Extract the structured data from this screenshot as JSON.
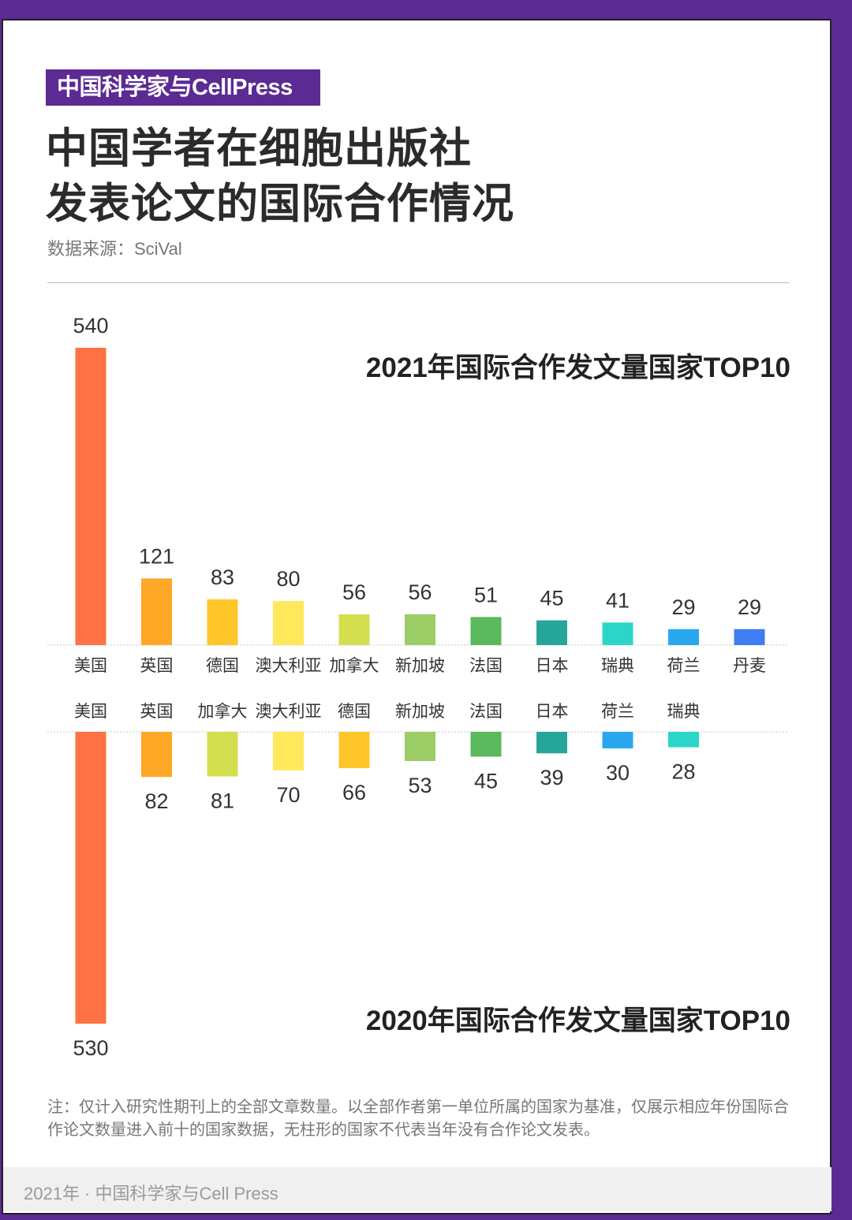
{
  "header": {
    "badge": "中国科学家与CellPress",
    "title_line1": "中国学者在细胞出版社",
    "title_line2": "发表论文的国际合作情况",
    "source": "数据来源：SciVal"
  },
  "chart_data": [
    {
      "type": "bar",
      "title": "2021年国际合作发文量国家TOP10",
      "categories": [
        "美国",
        "英国",
        "德国",
        "澳大利亚",
        "加拿大",
        "新加坡",
        "法国",
        "日本",
        "瑞典",
        "荷兰",
        "丹麦"
      ],
      "values": [
        540,
        121,
        83,
        80,
        56,
        56,
        51,
        45,
        41,
        29,
        29
      ],
      "colors": [
        "#ff7245",
        "#ffa726",
        "#ffc629",
        "#ffe95a",
        "#d4df4f",
        "#9ccc65",
        "#5cb85c",
        "#26a69a",
        "#2bd6c8",
        "#29a8f0",
        "#3f7ef0"
      ],
      "xlabel": "",
      "ylabel": ""
    },
    {
      "type": "bar",
      "title": "2020年国际合作发文量国家TOP10",
      "categories": [
        "美国",
        "英国",
        "加拿大",
        "澳大利亚",
        "德国",
        "新加坡",
        "法国",
        "日本",
        "荷兰",
        "瑞典"
      ],
      "values": [
        530,
        82,
        81,
        70,
        66,
        53,
        45,
        39,
        30,
        28
      ],
      "colors": [
        "#ff7245",
        "#ffa726",
        "#d4df4f",
        "#ffe95a",
        "#ffc629",
        "#9ccc65",
        "#5cb85c",
        "#26a69a",
        "#29a8f0",
        "#2bd6c8"
      ],
      "xlabel": "",
      "ylabel": ""
    }
  ],
  "note": "注：仅计入研究性期刊上的全部文章数量。以全部作者第一单位所属的国家为基准，仅展示相应年份国际合作论文数量进入前十的国家数据，无柱形的国家不代表当年没有合作论文发表。",
  "footer": "2021年 · 中国科学家与Cell Press"
}
